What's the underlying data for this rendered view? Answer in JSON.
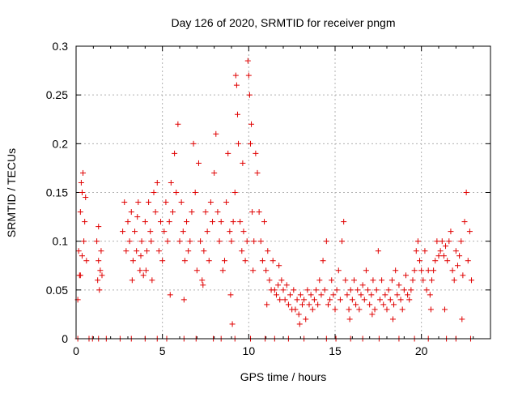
{
  "chart_data": {
    "type": "scatter",
    "title": "Day 126 of 2020, SRMTID for receiver pngm",
    "xlabel": "GPS time / hours",
    "ylabel": "SRMTID / TECUs",
    "xlim": [
      0,
      24
    ],
    "ylim": [
      0,
      0.3
    ],
    "xticks": [
      0,
      5,
      10,
      15,
      20
    ],
    "xtick_labels": [
      "0",
      "5",
      "10",
      "15",
      "20"
    ],
    "yticks": [
      0,
      0.05,
      0.1,
      0.15,
      0.2,
      0.25,
      0.3
    ],
    "ytick_labels": [
      "0",
      "0.05",
      "0.1",
      "0.15",
      "0.2",
      "0.25",
      "0.3"
    ],
    "grid": true,
    "marker": "+",
    "series": [
      {
        "name": "SRMTID",
        "color": "#e00000",
        "points": [
          [
            0.1,
            0.04
          ],
          [
            0.15,
            0.09
          ],
          [
            0.2,
            0.065
          ],
          [
            0.25,
            0.13
          ],
          [
            0.3,
            0.16
          ],
          [
            0.35,
            0.15
          ],
          [
            0.4,
            0.17
          ],
          [
            0.45,
            0.1
          ],
          [
            0.5,
            0.12
          ],
          [
            0.55,
            0.145
          ],
          [
            0.6,
            0.08
          ],
          [
            0.35,
            0.085
          ],
          [
            0.25,
            0.065
          ],
          [
            1.2,
            0.1
          ],
          [
            1.25,
            0.06
          ],
          [
            1.3,
            0.08
          ],
          [
            1.35,
            0.05
          ],
          [
            1.4,
            0.07
          ],
          [
            1.45,
            0.09
          ],
          [
            1.5,
            0.065
          ],
          [
            1.3,
            0.115
          ],
          [
            2.7,
            0.11
          ],
          [
            2.8,
            0.14
          ],
          [
            2.9,
            0.09
          ],
          [
            3.0,
            0.12
          ],
          [
            3.1,
            0.1
          ],
          [
            3.2,
            0.13
          ],
          [
            3.3,
            0.08
          ],
          [
            3.4,
            0.11
          ],
          [
            3.5,
            0.09
          ],
          [
            3.6,
            0.14
          ],
          [
            3.7,
            0.07
          ],
          [
            3.8,
            0.1
          ],
          [
            3.9,
            0.065
          ],
          [
            4.0,
            0.12
          ],
          [
            4.1,
            0.09
          ],
          [
            4.2,
            0.14
          ],
          [
            4.3,
            0.11
          ],
          [
            4.4,
            0.06
          ],
          [
            4.5,
            0.15
          ],
          [
            4.6,
            0.13
          ],
          [
            4.7,
            0.16
          ],
          [
            4.8,
            0.09
          ],
          [
            4.9,
            0.12
          ],
          [
            3.25,
            0.06
          ],
          [
            3.55,
            0.125
          ],
          [
            3.75,
            0.085
          ],
          [
            4.05,
            0.07
          ],
          [
            4.35,
            0.1
          ],
          [
            5.0,
            0.08
          ],
          [
            5.1,
            0.11
          ],
          [
            5.2,
            0.14
          ],
          [
            5.3,
            0.1
          ],
          [
            5.4,
            0.12
          ],
          [
            5.5,
            0.16
          ],
          [
            5.6,
            0.13
          ],
          [
            5.7,
            0.19
          ],
          [
            5.8,
            0.15
          ],
          [
            5.9,
            0.22
          ],
          [
            6.0,
            0.1
          ],
          [
            6.1,
            0.14
          ],
          [
            6.2,
            0.11
          ],
          [
            6.3,
            0.08
          ],
          [
            6.4,
            0.12
          ],
          [
            6.5,
            0.09
          ],
          [
            6.6,
            0.1
          ],
          [
            6.7,
            0.13
          ],
          [
            6.8,
            0.2
          ],
          [
            6.9,
            0.15
          ],
          [
            7.0,
            0.07
          ],
          [
            7.1,
            0.18
          ],
          [
            7.2,
            0.1
          ],
          [
            7.3,
            0.06
          ],
          [
            7.4,
            0.09
          ],
          [
            7.5,
            0.13
          ],
          [
            7.6,
            0.11
          ],
          [
            7.7,
            0.08
          ],
          [
            7.8,
            0.14
          ],
          [
            7.9,
            0.12
          ],
          [
            5.45,
            0.045
          ],
          [
            6.25,
            0.04
          ],
          [
            7.35,
            0.055
          ],
          [
            8.0,
            0.17
          ],
          [
            8.1,
            0.21
          ],
          [
            8.2,
            0.13
          ],
          [
            8.3,
            0.1
          ],
          [
            8.4,
            0.12
          ],
          [
            8.5,
            0.07
          ],
          [
            8.6,
            0.08
          ],
          [
            8.7,
            0.14
          ],
          [
            8.8,
            0.19
          ],
          [
            8.9,
            0.11
          ],
          [
            9.0,
            0.1
          ],
          [
            9.1,
            0.12
          ],
          [
            9.2,
            0.15
          ],
          [
            9.25,
            0.27
          ],
          [
            9.3,
            0.26
          ],
          [
            9.35,
            0.23
          ],
          [
            9.4,
            0.2
          ],
          [
            9.5,
            0.12
          ],
          [
            9.6,
            0.09
          ],
          [
            9.7,
            0.11
          ],
          [
            9.8,
            0.08
          ],
          [
            9.9,
            0.1
          ],
          [
            9.95,
            0.285
          ],
          [
            10.0,
            0.27
          ],
          [
            10.05,
            0.25
          ],
          [
            10.1,
            0.2
          ],
          [
            10.2,
            0.13
          ],
          [
            10.3,
            0.1
          ],
          [
            10.4,
            0.19
          ],
          [
            10.5,
            0.17
          ],
          [
            10.6,
            0.13
          ],
          [
            9.05,
            0.015
          ],
          [
            9.65,
            0.18
          ],
          [
            10.15,
            0.22
          ],
          [
            8.95,
            0.045
          ],
          [
            10.25,
            0.07
          ],
          [
            10.7,
            0.1
          ],
          [
            10.8,
            0.08
          ],
          [
            10.9,
            0.12
          ],
          [
            11.0,
            0.07
          ],
          [
            11.1,
            0.09
          ],
          [
            11.2,
            0.06
          ],
          [
            11.3,
            0.05
          ],
          [
            11.4,
            0.08
          ],
          [
            11.5,
            0.05
          ],
          [
            11.6,
            0.045
          ],
          [
            11.7,
            0.055
          ],
          [
            11.8,
            0.04
          ],
          [
            11.9,
            0.06
          ],
          [
            12.0,
            0.05
          ],
          [
            12.1,
            0.04
          ],
          [
            12.2,
            0.055
          ],
          [
            12.3,
            0.035
          ],
          [
            12.4,
            0.045
          ],
          [
            12.5,
            0.03
          ],
          [
            12.6,
            0.05
          ],
          [
            12.7,
            0.03
          ],
          [
            12.8,
            0.04
          ],
          [
            12.9,
            0.025
          ],
          [
            13.0,
            0.045
          ],
          [
            13.1,
            0.035
          ],
          [
            13.2,
            0.04
          ],
          [
            13.3,
            0.02
          ],
          [
            13.4,
            0.05
          ],
          [
            13.5,
            0.035
          ],
          [
            13.6,
            0.045
          ],
          [
            13.7,
            0.03
          ],
          [
            13.8,
            0.04
          ],
          [
            13.9,
            0.05
          ],
          [
            14.0,
            0.035
          ],
          [
            14.1,
            0.06
          ],
          [
            14.2,
            0.045
          ],
          [
            14.3,
            0.08
          ],
          [
            14.4,
            0.05
          ],
          [
            14.5,
            0.1
          ],
          [
            14.6,
            0.035
          ],
          [
            14.7,
            0.04
          ],
          [
            12.95,
            0.015
          ],
          [
            11.05,
            0.035
          ],
          [
            11.75,
            0.075
          ],
          [
            14.8,
            0.06
          ],
          [
            14.9,
            0.045
          ],
          [
            15.0,
            0.03
          ],
          [
            15.1,
            0.05
          ],
          [
            15.2,
            0.07
          ],
          [
            15.3,
            0.04
          ],
          [
            15.4,
            0.1
          ],
          [
            15.5,
            0.12
          ],
          [
            15.6,
            0.06
          ],
          [
            15.7,
            0.045
          ],
          [
            15.8,
            0.03
          ],
          [
            15.9,
            0.05
          ],
          [
            16.0,
            0.04
          ],
          [
            16.1,
            0.06
          ],
          [
            16.2,
            0.035
          ],
          [
            16.3,
            0.05
          ],
          [
            16.4,
            0.03
          ],
          [
            16.5,
            0.045
          ],
          [
            16.6,
            0.055
          ],
          [
            16.7,
            0.04
          ],
          [
            16.8,
            0.07
          ],
          [
            16.9,
            0.05
          ],
          [
            17.0,
            0.035
          ],
          [
            17.1,
            0.045
          ],
          [
            17.2,
            0.06
          ],
          [
            17.3,
            0.03
          ],
          [
            17.4,
            0.05
          ],
          [
            17.5,
            0.09
          ],
          [
            17.6,
            0.04
          ],
          [
            17.7,
            0.06
          ],
          [
            17.8,
            0.035
          ],
          [
            17.9,
            0.045
          ],
          [
            18.0,
            0.03
          ],
          [
            18.1,
            0.05
          ],
          [
            18.2,
            0.04
          ],
          [
            18.3,
            0.06
          ],
          [
            18.4,
            0.035
          ],
          [
            18.5,
            0.07
          ],
          [
            18.6,
            0.045
          ],
          [
            18.7,
            0.055
          ],
          [
            18.8,
            0.04
          ],
          [
            18.9,
            0.03
          ],
          [
            19.0,
            0.05
          ],
          [
            19.1,
            0.065
          ],
          [
            19.2,
            0.045
          ],
          [
            19.3,
            0.04
          ],
          [
            19.4,
            0.05
          ],
          [
            19.5,
            0.06
          ],
          [
            19.6,
            0.07
          ],
          [
            15.85,
            0.02
          ],
          [
            17.15,
            0.025
          ],
          [
            18.35,
            0.02
          ],
          [
            19.7,
            0.09
          ],
          [
            19.8,
            0.1
          ],
          [
            19.9,
            0.08
          ],
          [
            20.0,
            0.07
          ],
          [
            20.1,
            0.06
          ],
          [
            20.2,
            0.09
          ],
          [
            20.3,
            0.05
          ],
          [
            20.4,
            0.07
          ],
          [
            20.5,
            0.045
          ],
          [
            20.6,
            0.06
          ],
          [
            20.7,
            0.07
          ],
          [
            20.8,
            0.08
          ],
          [
            20.9,
            0.1
          ],
          [
            21.0,
            0.085
          ],
          [
            21.1,
            0.09
          ],
          [
            21.2,
            0.1
          ],
          [
            21.3,
            0.085
          ],
          [
            21.4,
            0.095
          ],
          [
            21.5,
            0.08
          ],
          [
            21.6,
            0.1
          ],
          [
            21.7,
            0.11
          ],
          [
            21.8,
            0.07
          ],
          [
            21.9,
            0.06
          ],
          [
            22.0,
            0.09
          ],
          [
            22.1,
            0.075
          ],
          [
            22.2,
            0.085
          ],
          [
            22.3,
            0.1
          ],
          [
            22.4,
            0.065
          ],
          [
            22.5,
            0.12
          ],
          [
            22.6,
            0.15
          ],
          [
            22.7,
            0.08
          ],
          [
            22.8,
            0.11
          ],
          [
            22.9,
            0.06
          ],
          [
            22.35,
            0.02
          ],
          [
            21.35,
            0.03
          ],
          [
            20.55,
            0.03
          ],
          [
            0.1,
            0.0
          ],
          [
            0.75,
            0.0
          ],
          [
            0.95,
            0.0
          ],
          [
            1.3,
            0.0
          ],
          [
            1.75,
            0.0
          ],
          [
            2.55,
            0.0
          ],
          [
            3.2,
            0.0
          ],
          [
            4.0,
            0.0
          ],
          [
            4.7,
            0.0
          ],
          [
            5.25,
            0.0
          ],
          [
            6.25,
            0.0
          ],
          [
            6.95,
            0.0
          ],
          [
            7.95,
            0.0
          ],
          [
            8.4,
            0.0
          ],
          [
            9.2,
            0.0
          ],
          [
            10.1,
            0.0
          ],
          [
            10.95,
            0.0
          ],
          [
            11.5,
            0.0
          ],
          [
            12.3,
            0.0
          ],
          [
            13.2,
            0.0
          ],
          [
            14.5,
            0.0
          ],
          [
            15.05,
            0.0
          ],
          [
            15.9,
            0.0
          ],
          [
            16.6,
            0.0
          ],
          [
            17.55,
            0.0
          ],
          [
            18.7,
            0.0
          ],
          [
            19.6,
            0.0
          ],
          [
            20.4,
            0.0
          ],
          [
            21.45,
            0.0
          ],
          [
            22.0,
            0.0
          ],
          [
            22.85,
            0.0
          ]
        ]
      }
    ]
  }
}
